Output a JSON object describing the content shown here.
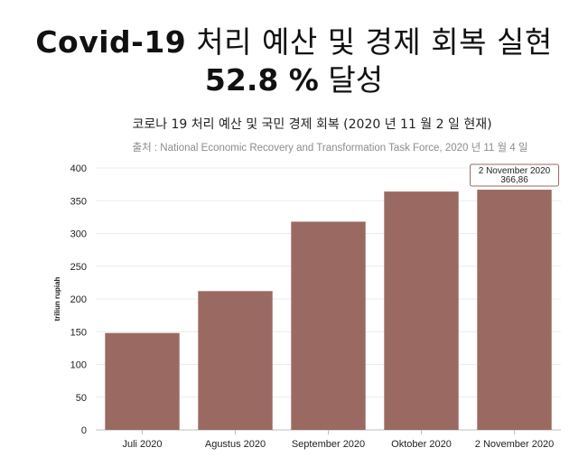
{
  "headline": {
    "line1_bold": "Covid-19",
    "line1_rest": " 처리 예산 및 경제 회복 실현",
    "line2_bold": "52.8 %",
    "line2_rest": " 달성"
  },
  "chart_data": {
    "type": "bar",
    "title": "코로나 19 처리 예산 및 국민 경제 회복 (2020 년 11 월 2 일 현재)",
    "subtitle": "출처 : National Economic Recovery and Transformation Task Force, 2020 년 11 월 4 일",
    "xlabel": "",
    "ylabel": "triliun rupiah",
    "categories": [
      "Juli 2020",
      "Agustus 2020",
      "September 2020",
      "Oktober 2020",
      "2 November 2020"
    ],
    "values": [
      148,
      212,
      318,
      364,
      366.86
    ],
    "ylim": [
      0,
      400
    ],
    "yticks": [
      0,
      50,
      100,
      150,
      200,
      250,
      300,
      350,
      400
    ],
    "grid": true,
    "bar_color": "#9a6a62",
    "tooltip": {
      "category": "2 November 2020",
      "value_label": "366,86"
    }
  }
}
